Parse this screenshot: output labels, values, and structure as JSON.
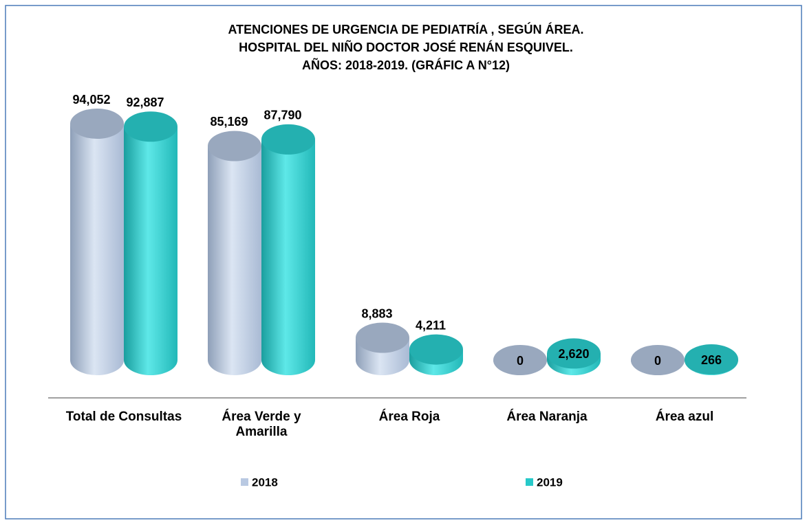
{
  "chart_data": {
    "type": "cylinder",
    "title": [
      "ATENCIONES DE URGENCIA DE PEDIATRÍA , SEGÚN ÁREA.",
      "HOSPITAL  DEL NIÑO DOCTOR JOSÉ RENÁN ESQUIVEL.",
      "AÑOS: 2018-2019. (GRÁFIC A N°12)"
    ],
    "categories": [
      "Total de Consultas",
      "Área Verde y Amarilla",
      "Área Roja",
      "Área  Naranja",
      "Área  azul"
    ],
    "series": [
      {
        "name": "2018",
        "color": "#b9c9e2",
        "values": [
          94052,
          85169,
          8883,
          0,
          0
        ],
        "value_labels": [
          "94,052",
          "85,169",
          "8,883",
          "0",
          "0"
        ]
      },
      {
        "name": "2019",
        "color": "#27c9c9",
        "values": [
          92887,
          87790,
          4211,
          2620,
          266
        ],
        "value_labels": [
          "92,887",
          "87,790",
          "4,211",
          "2,620",
          "266"
        ]
      }
    ]
  }
}
